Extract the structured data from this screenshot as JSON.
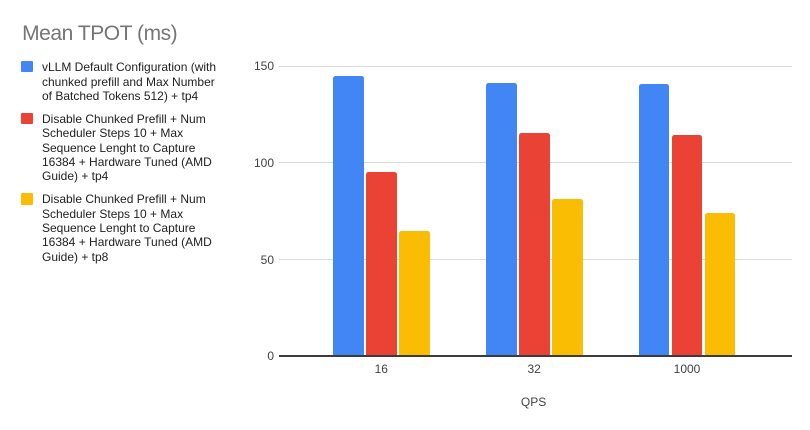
{
  "chart_data": {
    "type": "bar",
    "title": "Mean TPOT (ms)",
    "categories": [
      "16",
      "32",
      "1000"
    ],
    "series": [
      {
        "name": "vLLM Default Configuration (with chunked prefill and Max Number of Batched Tokens 512) + tp4",
        "color": "#4285f4",
        "values": [
          144.9,
          141.4,
          140.7
        ]
      },
      {
        "name": "Disable Chunked Prefill + Num Scheduler Steps 10 + Max Sequence Lenght to Capture 16384 + Hardware Tuned (AMD Guide) + tp4",
        "color": "#ea4335",
        "values": [
          95.4,
          115.4,
          114.3
        ]
      },
      {
        "name": "Disable Chunked Prefill + Num Scheduler Steps 10 + Max Sequence Lenght to Capture 16384 + Hardware Tuned (AMD Guide) + tp8",
        "color": "#fbbc04",
        "values": [
          64.9,
          81.4,
          74.1
        ]
      }
    ],
    "xlabel": "QPS",
    "ylabel": "",
    "ylim": [
      0,
      150
    ],
    "yticks": [
      0,
      50,
      100,
      150
    ],
    "legend_position": "left",
    "grid": true
  },
  "colors": {
    "background": "#ffffff",
    "title_text": "#757575",
    "legend_text": "#212121",
    "tick_text": "#424242",
    "gridline": "#d9d9d9",
    "axis_line": "#3b3b3b"
  }
}
